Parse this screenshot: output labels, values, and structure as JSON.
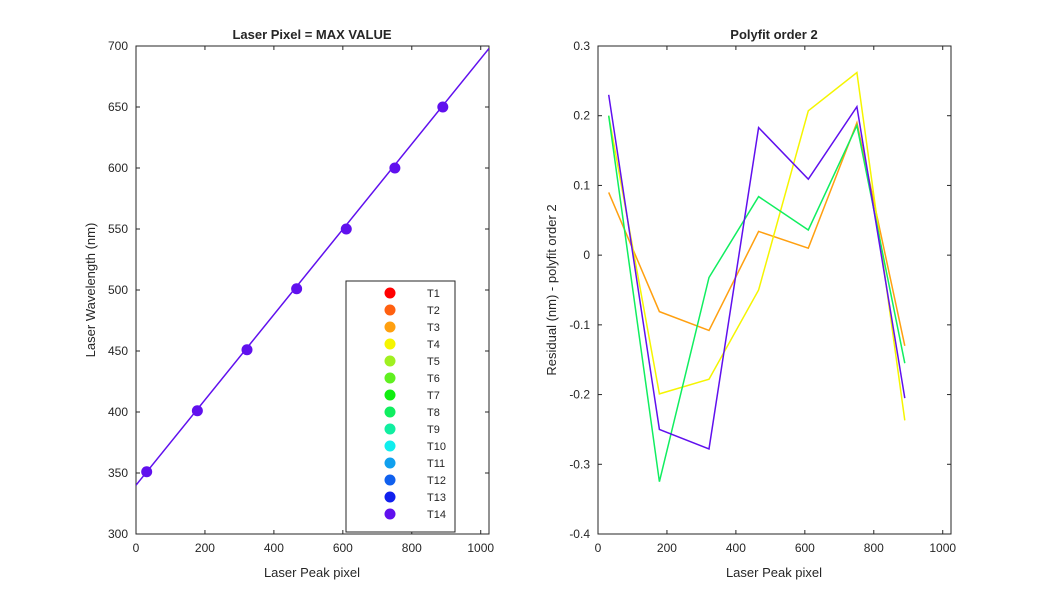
{
  "chart_data": [
    {
      "type": "scatter",
      "title": "Laser Pixel = MAX VALUE",
      "xlabel": "Laser Peak pixel",
      "ylabel": "Laser Wavelength (nm)",
      "xlim": [
        0,
        1024
      ],
      "ylim": [
        300,
        700
      ],
      "xticks": [
        0,
        200,
        400,
        600,
        800,
        1000
      ],
      "yticks": [
        300,
        350,
        400,
        450,
        500,
        550,
        600,
        650,
        700
      ],
      "grid": false,
      "legend_position": "bottom-right",
      "series": [
        {
          "name": "T1",
          "color": "#ff0000",
          "x": [],
          "y": []
        },
        {
          "name": "T2",
          "color": "#ff6010",
          "x": [],
          "y": []
        },
        {
          "name": "T3",
          "color": "#ffa010",
          "x": [],
          "y": []
        },
        {
          "name": "T4",
          "color": "#f5f500",
          "x": [],
          "y": []
        },
        {
          "name": "T5",
          "color": "#a0f020",
          "x": [],
          "y": []
        },
        {
          "name": "T6",
          "color": "#60f020",
          "x": [],
          "y": []
        },
        {
          "name": "T7",
          "color": "#10ee10",
          "x": [],
          "y": []
        },
        {
          "name": "T8",
          "color": "#10ee60",
          "x": [],
          "y": []
        },
        {
          "name": "T9",
          "color": "#10eea0",
          "x": [],
          "y": []
        },
        {
          "name": "T10",
          "color": "#10eeee",
          "x": [],
          "y": []
        },
        {
          "name": "T11",
          "color": "#10a0ee",
          "x": [],
          "y": []
        },
        {
          "name": "T12",
          "color": "#1060ee",
          "x": [],
          "y": []
        },
        {
          "name": "T13",
          "color": "#1020ee",
          "x": [],
          "y": []
        },
        {
          "name": "T14",
          "color": "#6010ee",
          "x": [
            31,
            178,
            322,
            466,
            610,
            751,
            890
          ],
          "y": [
            351,
            401,
            451,
            501,
            550,
            600,
            650
          ]
        }
      ],
      "fit_line": {
        "color": "#6010ee",
        "x": [
          0,
          1024
        ],
        "y": [
          340,
          698
        ]
      }
    },
    {
      "type": "line",
      "title": "Polyfit order 2",
      "xlabel": "Laser Peak pixel",
      "ylabel": "Residual (nm) - polyfit order 2",
      "xlim": [
        0,
        1024
      ],
      "ylim": [
        -0.4,
        0.3
      ],
      "xticks": [
        0,
        200,
        400,
        600,
        800,
        1000
      ],
      "yticks": [
        -0.4,
        -0.3,
        -0.2,
        -0.1,
        0,
        0.1,
        0.2,
        0.3
      ],
      "grid": false,
      "x": [
        31,
        178,
        322,
        466,
        610,
        751,
        890
      ],
      "series": [
        {
          "color": "#ffa010",
          "values": [
            0.09,
            -0.081,
            -0.108,
            0.034,
            0.01,
            0.19,
            -0.13
          ]
        },
        {
          "color": "#f5f500",
          "values": [
            0.2,
            -0.199,
            -0.178,
            -0.05,
            0.207,
            0.262,
            -0.237
          ]
        },
        {
          "color": "#10ee60",
          "values": [
            0.2,
            -0.325,
            -0.032,
            0.084,
            0.036,
            0.186,
            -0.155
          ]
        },
        {
          "color": "#6010ee",
          "values": [
            0.23,
            -0.25,
            -0.278,
            0.183,
            0.109,
            0.213,
            -0.205
          ]
        }
      ]
    }
  ]
}
